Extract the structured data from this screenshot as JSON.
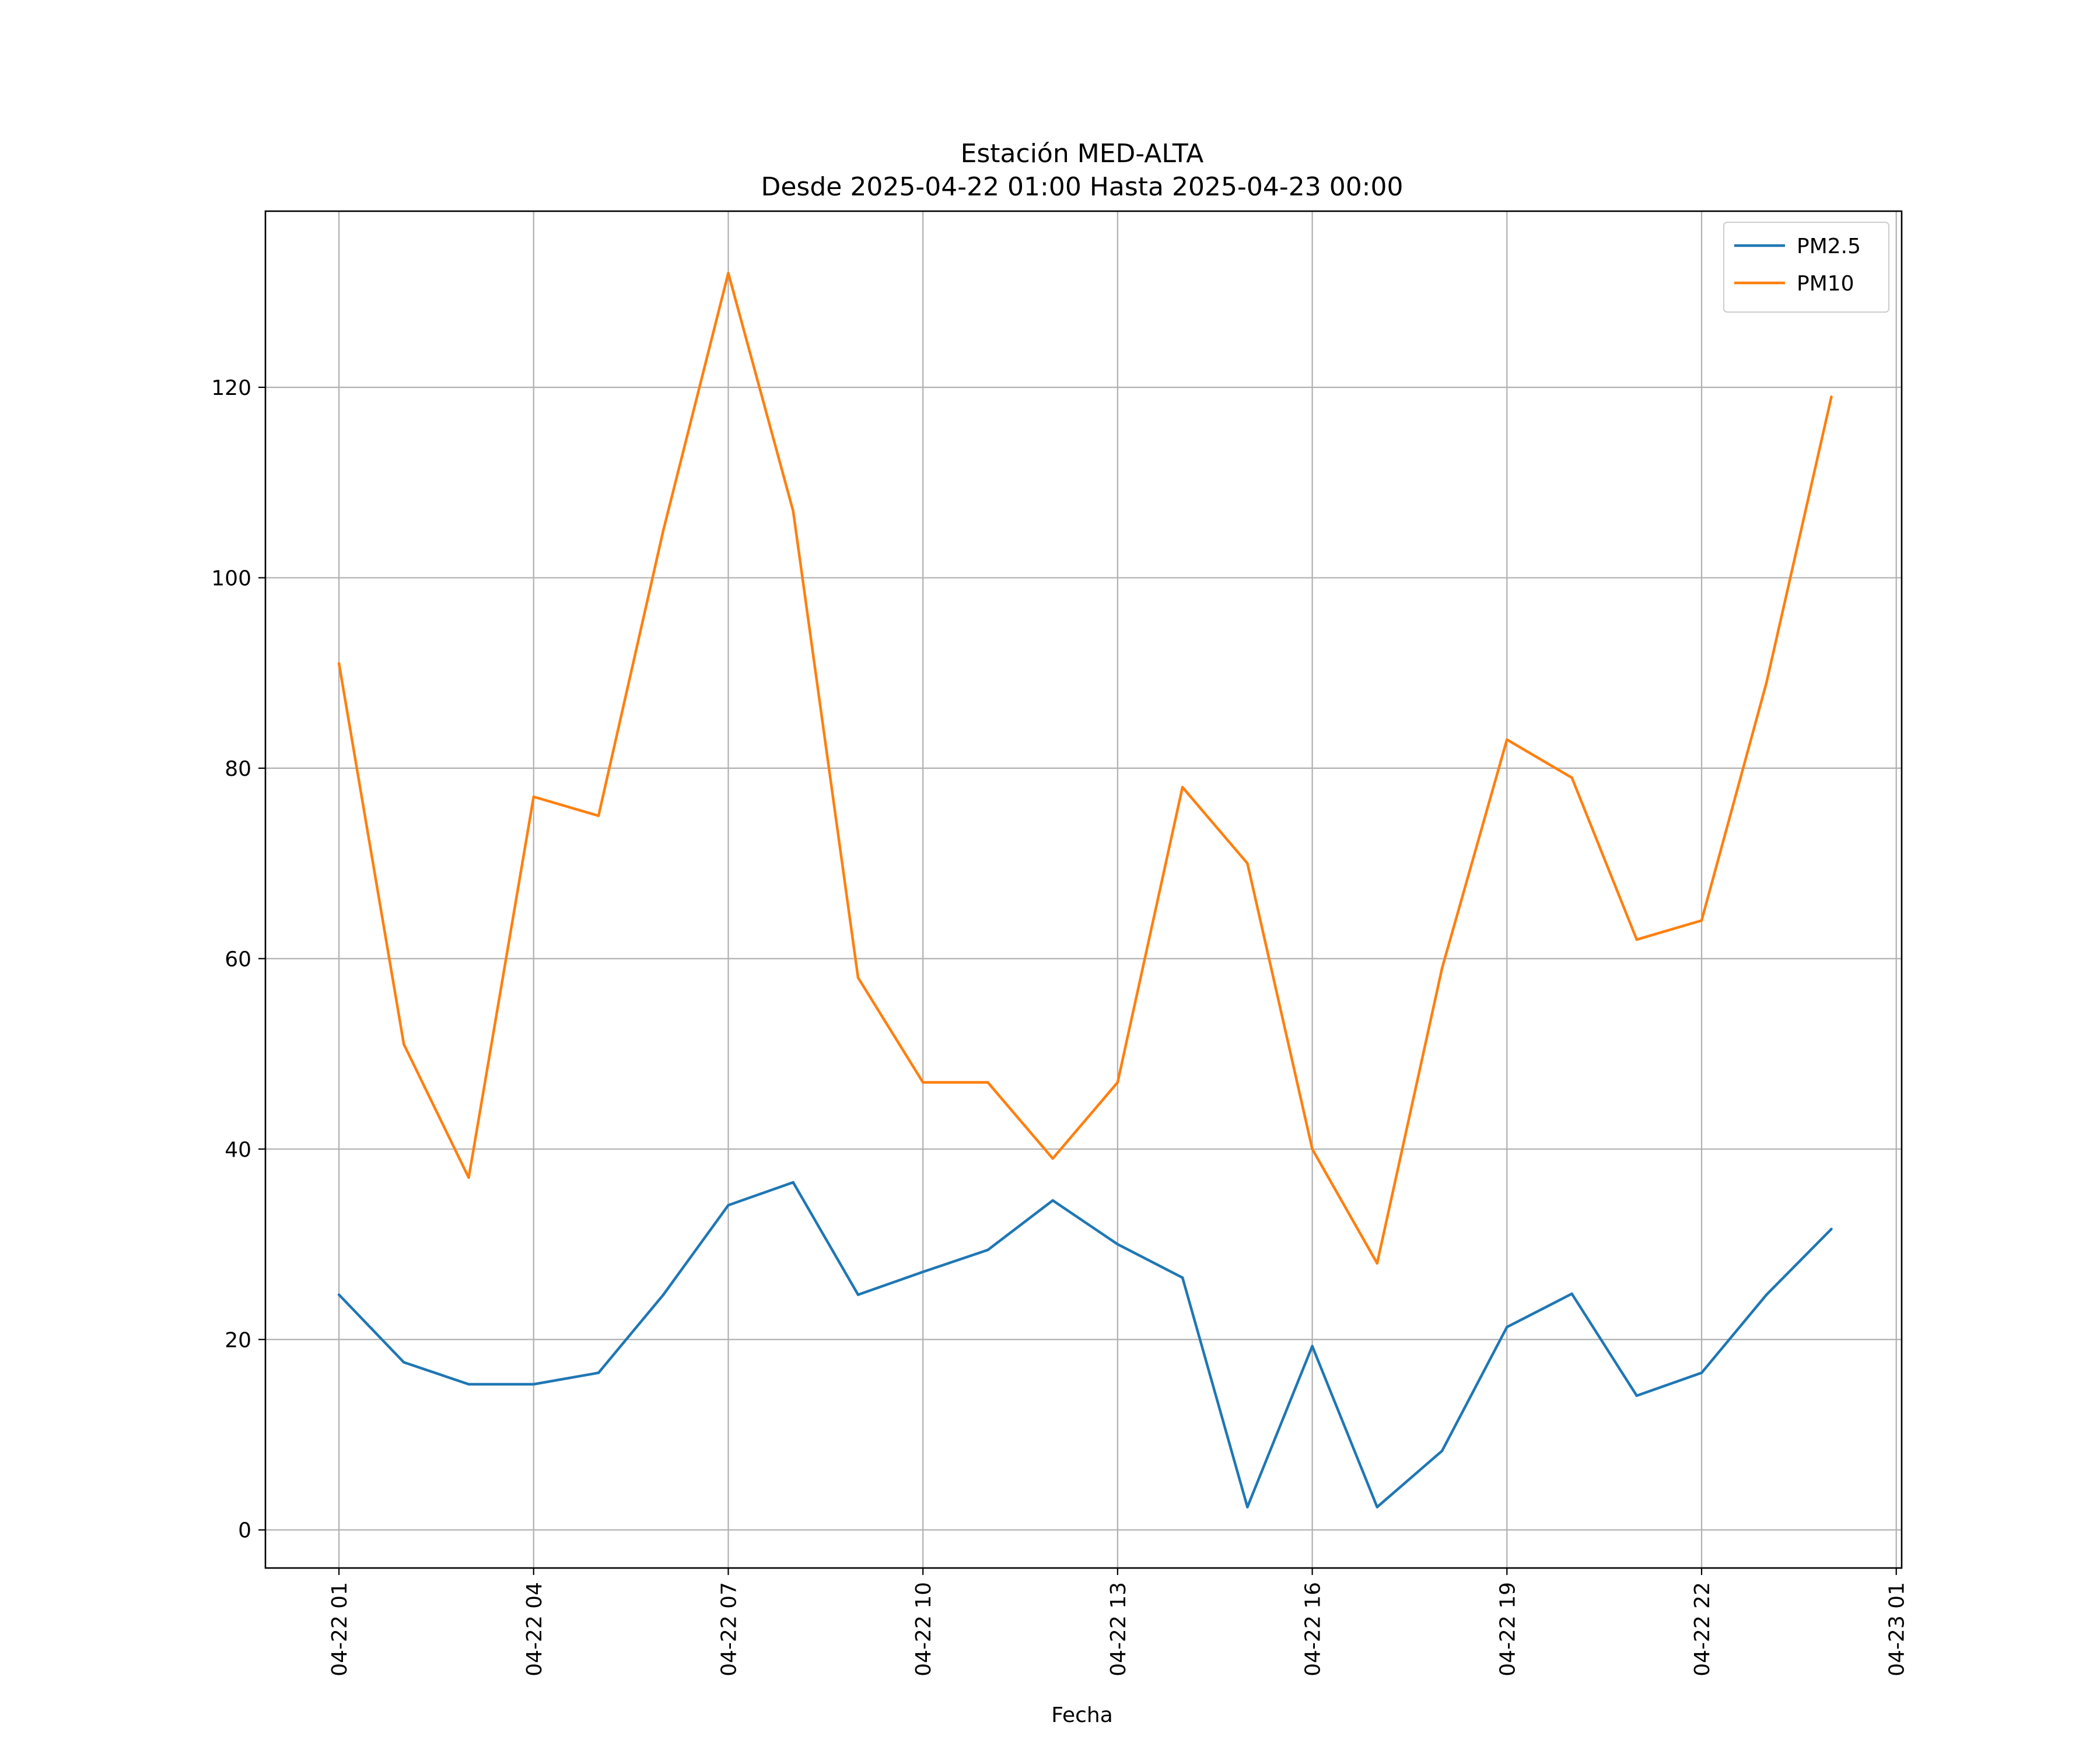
{
  "chart_data": {
    "type": "line",
    "title": "Estación MED-ALTA",
    "subtitle": "Desde 2025-04-22 01:00 Hasta 2025-04-23 00:00",
    "xlabel": "Fecha",
    "ylabel": "",
    "x": [
      "2025-04-22 01:00",
      "2025-04-22 02:00",
      "2025-04-22 03:00",
      "2025-04-22 04:00",
      "2025-04-22 05:00",
      "2025-04-22 06:00",
      "2025-04-22 07:00",
      "2025-04-22 08:00",
      "2025-04-22 09:00",
      "2025-04-22 10:00",
      "2025-04-22 11:00",
      "2025-04-22 12:00",
      "2025-04-22 13:00",
      "2025-04-22 14:00",
      "2025-04-22 15:00",
      "2025-04-22 16:00",
      "2025-04-22 17:00",
      "2025-04-22 18:00",
      "2025-04-22 19:00",
      "2025-04-22 20:00",
      "2025-04-22 21:00",
      "2025-04-22 22:00",
      "2025-04-22 23:00",
      "2025-04-23 00:00"
    ],
    "series": [
      {
        "name": "PM2.5",
        "color": "#1f77b4",
        "values": [
          24.7,
          17.6,
          15.3,
          15.3,
          16.5,
          24.7,
          34.1,
          36.5,
          24.7,
          27.1,
          29.4,
          34.6,
          30.0,
          26.5,
          2.4,
          19.3,
          2.4,
          8.3,
          21.3,
          24.8,
          14.1,
          16.5,
          24.7,
          31.6
        ]
      },
      {
        "name": "PM10",
        "color": "#ff7f0e",
        "values": [
          91,
          51,
          37,
          77,
          75,
          105,
          132,
          107,
          58,
          47,
          47,
          39,
          47,
          78,
          70,
          40,
          28,
          59,
          83,
          79,
          62,
          64,
          89,
          119
        ]
      }
    ],
    "x_ticks": [
      "04-22 01",
      "04-22 04",
      "04-22 07",
      "04-22 10",
      "04-22 13",
      "04-22 16",
      "04-22 19",
      "04-22 22",
      "04-23 01"
    ],
    "x_tick_values": [
      "2025-04-22 01:00",
      "2025-04-22 04:00",
      "2025-04-22 07:00",
      "2025-04-22 10:00",
      "2025-04-22 13:00",
      "2025-04-22 16:00",
      "2025-04-22 19:00",
      "2025-04-22 22:00",
      "2025-04-23 01:00"
    ],
    "y_ticks": [
      0,
      20,
      40,
      60,
      80,
      100,
      120
    ],
    "xlim": [
      "2025-04-21 23:52",
      "2025-04-23 01:05"
    ],
    "ylim": [
      -4,
      138.5
    ],
    "grid": true,
    "legend_position": "top-right"
  }
}
